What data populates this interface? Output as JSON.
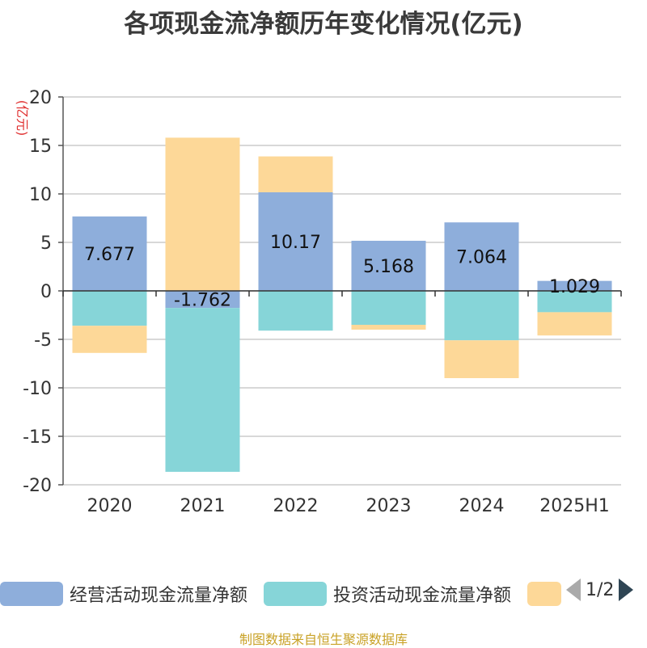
{
  "chart_data": {
    "type": "bar",
    "stacked": true,
    "title": "各项现金流净额历年变化情况(亿元)",
    "ylabel": "(亿元)",
    "ylim": [
      -20,
      20
    ],
    "yticks": [
      20,
      15,
      10,
      5,
      0,
      -5,
      -10,
      -15,
      -20
    ],
    "grid": true,
    "legend_position": "bottom",
    "categories": [
      "2020",
      "2021",
      "2022",
      "2023",
      "2024",
      "2025H1"
    ],
    "series": [
      {
        "name": "经营活动现金流量净额",
        "color": "#8eaedb",
        "values": [
          7.677,
          -1.762,
          10.17,
          5.168,
          7.064,
          1.029
        ],
        "labels": [
          "7.677",
          "-1.762",
          "10.17",
          "5.168",
          "7.064",
          "1.029"
        ]
      },
      {
        "name": "投资活动现金流量净额",
        "color": "#86d5d8",
        "values": [
          -3.6,
          -16.9,
          -4.1,
          -3.5,
          -5.1,
          -2.2
        ]
      },
      {
        "color": "#fdd898",
        "values": [
          -2.8,
          15.8,
          3.7,
          -0.5,
          -3.9,
          -2.4
        ]
      }
    ]
  },
  "legend": {
    "items": [
      {
        "label": "经营活动现金流量净额",
        "color": "#8eaedb"
      },
      {
        "label": "投资活动现金流量净额",
        "color": "#86d5d8"
      },
      {
        "label": "",
        "color": "#fdd898"
      }
    ],
    "page": "1/2"
  },
  "source": "制图数据来自恒生聚源数据库"
}
